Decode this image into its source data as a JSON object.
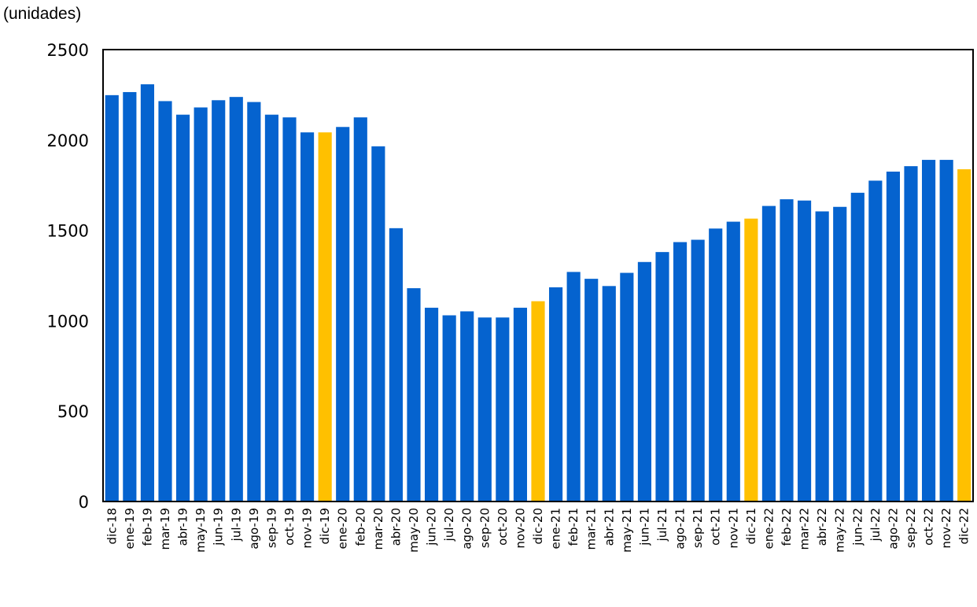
{
  "chart_data": {
    "type": "bar",
    "title": "",
    "unit_label": "(unidades)",
    "xlabel": "",
    "ylabel": "",
    "ylim": [
      0,
      2500
    ],
    "yticks": [
      0,
      500,
      1000,
      1500,
      2000,
      2500
    ],
    "grid": false,
    "legend": "none",
    "colors": {
      "default": "#0563CF",
      "highlight": "#FFC000"
    },
    "highlighted": [
      "dic-19",
      "dic-20",
      "dic-21",
      "dic-22"
    ],
    "categories": [
      "dic-18",
      "ene-19",
      "feb-19",
      "mar-19",
      "abr-19",
      "may-19",
      "jun-19",
      "jul-19",
      "ago-19",
      "sep-19",
      "oct-19",
      "nov-19",
      "dic-19",
      "ene-20",
      "feb-20",
      "mar-20",
      "abr-20",
      "may-20",
      "jun-20",
      "jul-20",
      "ago-20",
      "sep-20",
      "oct-20",
      "nov-20",
      "dic-20",
      "ene-21",
      "feb-21",
      "mar-21",
      "abr-21",
      "may-21",
      "jun-21",
      "jul-21",
      "ago-21",
      "sep-21",
      "oct-21",
      "nov-21",
      "dic-21",
      "ene-22",
      "feb-22",
      "mar-22",
      "abr-22",
      "may-22",
      "jun-22",
      "jul-22",
      "ago-22",
      "sep-22",
      "oct-22",
      "nov-22",
      "dic-22"
    ],
    "values": [
      2248,
      2265,
      2308,
      2215,
      2140,
      2180,
      2220,
      2238,
      2210,
      2140,
      2125,
      2042,
      2042,
      2072,
      2125,
      1965,
      1512,
      1180,
      1072,
      1030,
      1052,
      1018,
      1018,
      1072,
      1108,
      1185,
      1270,
      1232,
      1192,
      1265,
      1325,
      1380,
      1435,
      1448,
      1510,
      1548,
      1565,
      1635,
      1672,
      1665,
      1605,
      1630,
      1708,
      1775,
      1825,
      1855,
      1890,
      1890,
      1838
    ]
  }
}
